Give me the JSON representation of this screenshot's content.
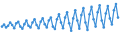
{
  "chart_data": {
    "type": "line",
    "categories": [
      null,
      null,
      null,
      null,
      null,
      null,
      null,
      null,
      null,
      null,
      null,
      null,
      null,
      null,
      null,
      null,
      null,
      null,
      null,
      null,
      null,
      null,
      null,
      null,
      null,
      null,
      null,
      null,
      null,
      null,
      null,
      null,
      null,
      null,
      null,
      null,
      null,
      null,
      null,
      null,
      null,
      null,
      null,
      null,
      null,
      null,
      null,
      null,
      null,
      null,
      null,
      null,
      null,
      null,
      null,
      null,
      null,
      null
    ],
    "values": [
      40,
      45,
      38,
      42,
      50,
      44,
      36,
      48,
      52,
      40,
      35,
      46,
      55,
      42,
      38,
      50,
      58,
      44,
      36,
      52,
      60,
      46,
      38,
      55,
      62,
      40,
      34,
      58,
      70,
      50,
      36,
      62,
      75,
      48,
      30,
      60,
      80,
      55,
      35,
      68,
      85,
      50,
      32,
      70,
      88,
      58,
      40,
      75,
      92,
      55,
      38,
      72,
      90,
      60,
      45,
      80,
      95,
      62
    ],
    "color": "#3d8fd8",
    "marker": "circle",
    "ylim": [
      0,
      100
    ],
    "tick_labels": false,
    "grid": false
  }
}
